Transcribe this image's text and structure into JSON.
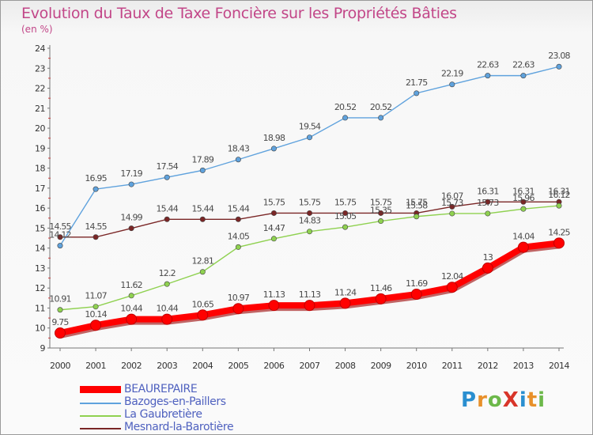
{
  "chart_data": {
    "type": "line",
    "title": "Evolution du Taux de Taxe Foncière sur les Propriétés Bâties",
    "unit_label": "(en %)",
    "x": [
      "2000",
      "2001",
      "2002",
      "2003",
      "2004",
      "2005",
      "2006",
      "2007",
      "2008",
      "2009",
      "2010",
      "2011",
      "2012",
      "2013",
      "2014"
    ],
    "ylim": [
      9,
      24
    ],
    "yticks": [
      "9",
      "10",
      "11",
      "12",
      "13",
      "14",
      "15",
      "16",
      "17",
      "18",
      "19",
      "20",
      "21",
      "22",
      "23",
      "24"
    ],
    "grid": false,
    "legend_position": "bottom-left",
    "series": [
      {
        "name": "BEAUREPAIRE",
        "color": "#ff0000",
        "values": [
          9.75,
          10.14,
          10.44,
          10.44,
          10.65,
          10.97,
          11.13,
          11.13,
          11.24,
          11.46,
          11.69,
          12.04,
          13,
          14.04,
          14.25
        ],
        "labels": [
          "9.75",
          "10.14",
          "10.44",
          "10.44",
          "10.65",
          "10.97",
          "11.13",
          "11.13",
          "11.24",
          "11.46",
          "11.69",
          "12.04",
          "13",
          "14.04",
          "14.25"
        ]
      },
      {
        "name": "Bazoges-en-Paillers",
        "color": "#5fa2dd",
        "values": [
          14.12,
          16.95,
          17.19,
          17.54,
          17.89,
          18.43,
          18.98,
          19.54,
          20.52,
          20.52,
          21.75,
          22.19,
          22.63,
          22.63,
          23.08
        ],
        "labels": [
          "14.12",
          "16.95",
          "17.19",
          "17.54",
          "17.89",
          "18.43",
          "18.98",
          "19.54",
          "20.52",
          "20.52",
          "21.75",
          "22.19",
          "22.63",
          "22.63",
          "23.08"
        ]
      },
      {
        "name": "La Gaubretière",
        "color": "#8fd150",
        "values": [
          10.91,
          11.07,
          11.62,
          12.2,
          12.81,
          14.05,
          14.47,
          14.83,
          15.05,
          15.35,
          15.58,
          15.73,
          15.73,
          15.96,
          16.12
        ],
        "labels": [
          "10.91",
          "11.07",
          "11.62",
          "12.2",
          "12.81",
          "14.05",
          "14.47",
          "14.83",
          "15.05",
          "15.35",
          "15.58",
          "15.73",
          "15.73",
          "15.96",
          "16.12"
        ]
      },
      {
        "name": "Mesnard-la-Barotière",
        "color": "#7a2626",
        "values": [
          14.55,
          14.55,
          14.99,
          15.44,
          15.44,
          15.44,
          15.75,
          15.75,
          15.75,
          15.75,
          15.75,
          16.07,
          16.31,
          16.31,
          16.31
        ],
        "labels": [
          "14.55",
          "14.55",
          "14.99",
          "15.44",
          "15.44",
          "15.44",
          "15.75",
          "15.75",
          "15.75",
          "15.75",
          "15.75",
          "16.07",
          "16.31",
          "16.31",
          "16.31"
        ]
      }
    ]
  },
  "logo": {
    "text": "ProXiti",
    "letters": [
      "P",
      "r",
      "o",
      "X",
      "i",
      "t",
      "i"
    ]
  }
}
